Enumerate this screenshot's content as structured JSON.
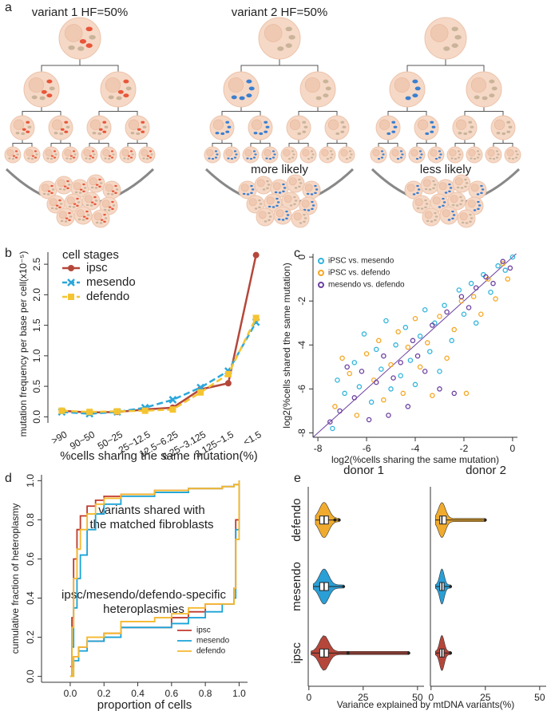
{
  "diagram": {
    "panel": "a",
    "labels": [
      "variant 1 HF=50%",
      "variant 2 HF=50%"
    ],
    "outcomes": [
      "more likely",
      "less likely"
    ]
  },
  "chart_data": [
    {
      "type": "line",
      "panel": "b",
      "ylabel": "mutation frequency per base per cell(x10⁻⁵)",
      "xlabel": "%cells sharing the same mutation(%)",
      "legend_title": "cell stages",
      "categories": [
        ">90",
        "90~50",
        "50~25",
        "25~12.5",
        "12.5~6.25",
        "6.25~3.125",
        "3.125~1.5",
        "<1.5"
      ],
      "series": [
        {
          "name": "ipsc",
          "color": "#b5473a",
          "marker": "circle",
          "dashed": false,
          "values": [
            0.1,
            0.07,
            0.08,
            0.12,
            0.15,
            0.45,
            0.55,
            2.65
          ]
        },
        {
          "name": "mesendo",
          "color": "#2aa7dc",
          "marker": "cross",
          "dashed": true,
          "values": [
            0.08,
            0.05,
            0.08,
            0.15,
            0.28,
            0.48,
            0.75,
            1.55
          ]
        },
        {
          "name": "defendo",
          "color": "#f5c431",
          "marker": "square",
          "dashed": true,
          "values": [
            0.1,
            0.08,
            0.09,
            0.1,
            0.12,
            0.4,
            0.7,
            1.62
          ]
        }
      ],
      "ylim": [
        -0.1,
        2.75
      ],
      "yticks": [
        {
          "value": 0,
          "label": "0.0"
        },
        0.5,
        {
          "value": 1,
          "label": "1.0"
        },
        1.5,
        {
          "value": 2,
          "label": "2.0"
        },
        2.5
      ]
    },
    {
      "type": "scatter",
      "panel": "c",
      "xlabel": "log2(%cells sharing the same mutation)",
      "ylabel": "log2(%cells shared the same mutation)",
      "diagonal": true,
      "diagonal_color": "#6b3fa0",
      "series": [
        {
          "name": "iPSC vs. mesendo",
          "color": "#30b4dc",
          "x": [
            -7.4,
            -7.2,
            -6.9,
            -6.5,
            -6.3,
            -6.1,
            -5.8,
            -5.6,
            -5.4,
            -5.2,
            -5.0,
            -4.8,
            -4.6,
            -4.4,
            -4.2,
            -4.0,
            -3.8,
            -3.6,
            -3.4,
            -3.2,
            -3.0,
            -2.8,
            -2.5,
            -2.2,
            -2.0,
            -1.7,
            -1.5,
            -1.2,
            -0.9,
            -0.6,
            -0.3,
            0
          ],
          "values": [
            -7.8,
            -5.6,
            -6.2,
            -4.8,
            -5.9,
            -3.5,
            -6.6,
            -4.2,
            -5.1,
            -2.9,
            -6.0,
            -4.0,
            -5.4,
            -3.2,
            -4.7,
            -5.8,
            -3.6,
            -2.4,
            -4.3,
            -3.0,
            -5.2,
            -2.2,
            -3.8,
            -1.5,
            -2.6,
            -1.2,
            -3.0,
            -0.8,
            -1.6,
            -0.4,
            -0.6,
            0
          ]
        },
        {
          "name": "iPSC vs. defendo",
          "color": "#f5a623",
          "x": [
            -7.3,
            -7.0,
            -6.7,
            -6.4,
            -6.0,
            -5.7,
            -5.5,
            -5.3,
            -5.0,
            -4.7,
            -4.5,
            -4.3,
            -4.0,
            -3.8,
            -3.5,
            -3.3,
            -3.0,
            -2.7,
            -2.4,
            -2.1,
            -1.9,
            -1.6,
            -1.3,
            -1.0,
            -0.7,
            -0.4,
            -0.2
          ],
          "values": [
            -6.8,
            -4.6,
            -5.3,
            -7.2,
            -4.4,
            -5.6,
            -3.8,
            -6.5,
            -4.9,
            -3.4,
            -6.2,
            -4.1,
            -2.8,
            -5.0,
            -3.9,
            -6.3,
            -2.7,
            -4.6,
            -3.3,
            -2.0,
            -6.2,
            -1.8,
            -2.6,
            -1.0,
            -1.9,
            -0.3,
            -1.0
          ]
        },
        {
          "name": "mesendo vs. defendo",
          "color": "#6b3fa0",
          "x": [
            -7.5,
            -7.1,
            -6.8,
            -6.5,
            -6.2,
            -5.9,
            -5.6,
            -5.3,
            -5.1,
            -4.9,
            -4.6,
            -4.3,
            -4.1,
            -3.9,
            -3.6,
            -3.3,
            -3.0,
            -2.7,
            -2.4,
            -2.1,
            -1.8,
            -1.5,
            -1.1,
            -0.8,
            -0.4,
            -0.1
          ],
          "values": [
            -7.5,
            -7.0,
            -5.0,
            -6.4,
            -5.2,
            -7.4,
            -5.7,
            -4.5,
            -7.2,
            -5.5,
            -4.8,
            -6.8,
            -3.8,
            -4.5,
            -5.2,
            -3.1,
            -6.0,
            -2.5,
            -6.2,
            -1.8,
            -2.3,
            -1.4,
            -0.9,
            -1.2,
            -0.2,
            -0.5
          ]
        }
      ],
      "xlim": [
        -8.2,
        0.2
      ],
      "ylim": [
        -8.2,
        0.15
      ],
      "xticks": [
        -8,
        -6,
        -4,
        -2,
        0
      ],
      "yticks": [
        -8,
        -6,
        -4,
        -2,
        0
      ]
    },
    {
      "type": "ecdf",
      "panel": "d",
      "xlabel": "proportion of cells",
      "ylabel": "cumulative fraction of heteroplasmy",
      "annotations": [
        "variants shared with",
        "the matched fibroblasts",
        "ipsc/mesendo/defendo-specific",
        "heteroplasmies"
      ],
      "series": [
        {
          "name": "ipsc",
          "color": "#c0392b",
          "curves": [
            {
              "x": [
                0,
                0.01,
                0.02,
                0.04,
                0.06,
                0.1,
                0.15,
                0.2,
                0.3,
                0.5,
                0.7,
                0.9,
                0.97,
                1.0
              ],
              "values": [
                0,
                0.3,
                0.6,
                0.75,
                0.82,
                0.87,
                0.9,
                0.92,
                0.93,
                0.95,
                0.96,
                0.97,
                0.98,
                1.0
              ]
            },
            {
              "x": [
                0,
                0.02,
                0.05,
                0.1,
                0.2,
                0.3,
                0.5,
                0.6,
                0.7,
                0.8,
                0.9,
                0.97,
                0.98,
                1.0
              ],
              "values": [
                0.05,
                0.1,
                0.15,
                0.18,
                0.22,
                0.25,
                0.25,
                0.3,
                0.33,
                0.37,
                0.37,
                0.45,
                0.8,
                1.0
              ]
            }
          ]
        },
        {
          "name": "mesendo",
          "color": "#1aa3d8",
          "curves": [
            {
              "x": [
                0,
                0.01,
                0.02,
                0.04,
                0.06,
                0.1,
                0.15,
                0.2,
                0.3,
                0.5,
                0.7,
                0.9,
                0.97,
                1.0
              ],
              "values": [
                0,
                0.15,
                0.35,
                0.5,
                0.62,
                0.75,
                0.83,
                0.88,
                0.92,
                0.94,
                0.96,
                0.97,
                0.98,
                1.0
              ]
            },
            {
              "x": [
                0,
                0.02,
                0.05,
                0.1,
                0.2,
                0.3,
                0.5,
                0.6,
                0.7,
                0.8,
                0.9,
                0.97,
                0.98,
                1.0
              ],
              "values": [
                0,
                0.08,
                0.13,
                0.18,
                0.2,
                0.25,
                0.25,
                0.27,
                0.3,
                0.33,
                0.37,
                0.4,
                0.75,
                1.0
              ]
            }
          ]
        },
        {
          "name": "defendo",
          "color": "#f5b82e",
          "curves": [
            {
              "x": [
                0,
                0.01,
                0.02,
                0.04,
                0.06,
                0.1,
                0.15,
                0.2,
                0.3,
                0.5,
                0.7,
                0.9,
                0.97,
                1.0
              ],
              "values": [
                0,
                0.25,
                0.5,
                0.65,
                0.75,
                0.83,
                0.88,
                0.91,
                0.93,
                0.95,
                0.96,
                0.97,
                0.98,
                1.0
              ]
            },
            {
              "x": [
                0,
                0.02,
                0.05,
                0.1,
                0.2,
                0.3,
                0.5,
                0.6,
                0.7,
                0.8,
                0.9,
                0.97,
                0.98,
                1.0
              ],
              "values": [
                0,
                0.1,
                0.15,
                0.2,
                0.22,
                0.28,
                0.3,
                0.32,
                0.35,
                0.37,
                0.37,
                0.45,
                0.7,
                1.0
              ]
            }
          ]
        }
      ],
      "xlim": [
        -0.17,
        1.05
      ],
      "ylim": [
        -0.03,
        1.03
      ],
      "xticks": [
        {
          "value": 0,
          "label": "0.0"
        },
        0.2,
        0.4,
        0.6,
        0.8,
        {
          "value": 1,
          "label": "1.0"
        }
      ],
      "yticks": [
        {
          "value": 0,
          "label": "0.0"
        },
        0.2,
        0.4,
        0.6,
        0.8,
        {
          "value": 1,
          "label": "1.0"
        }
      ]
    },
    {
      "type": "violin",
      "panel": "e",
      "xlabel": "Variance explained by mtDNA variants(%)",
      "categories": [
        "ipsc",
        "mesendo",
        "defendo"
      ],
      "colors": [
        "#b5473a",
        "#2a9fd6",
        "#f0ab2e"
      ],
      "xlim": [
        -2.5,
        53
      ],
      "xticks": [
        0,
        25,
        50
      ],
      "panels": [
        {
          "title": "donor 1",
          "boxes": [
            {
              "min": 1,
              "q1": 5,
              "median": 7,
              "q3": 9,
              "max": 46,
              "outliers": [
                18
              ]
            },
            {
              "min": 2,
              "q1": 5,
              "median": 7,
              "q3": 9,
              "max": 16,
              "outliers": []
            },
            {
              "min": 3,
              "q1": 5,
              "median": 7,
              "q3": 9,
              "max": 14,
              "outliers": [
                12
              ]
            }
          ]
        },
        {
          "title": "donor 2",
          "boxes": [
            {
              "min": 2,
              "q1": 4,
              "median": 5,
              "q3": 6,
              "max": 9,
              "outliers": []
            },
            {
              "min": 2,
              "q1": 4,
              "median": 5,
              "q3": 6,
              "max": 9,
              "outliers": []
            },
            {
              "min": 2,
              "q1": 4,
              "median": 5,
              "q3": 7,
              "max": 25,
              "outliers": []
            }
          ]
        }
      ]
    }
  ]
}
